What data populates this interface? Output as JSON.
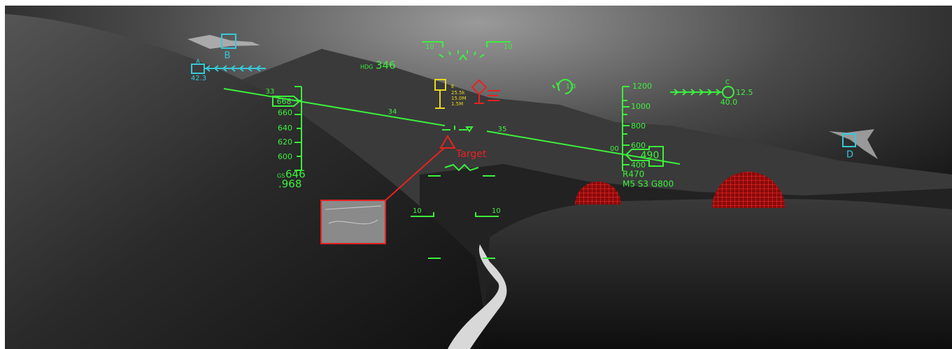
{
  "tracks": {
    "b": {
      "label": "B"
    },
    "a": {
      "label": "A",
      "value": "42.3"
    },
    "c": {
      "label": "C",
      "range": "12.5",
      "value": "40.0"
    },
    "d": {
      "label": "D"
    }
  },
  "heading": {
    "label": "HDG",
    "value": "346"
  },
  "heading_scale": [
    "10",
    "10"
  ],
  "horizon_marks": [
    "33",
    "34",
    "35"
  ],
  "speed_tape": {
    "ticks": [
      "660",
      "640",
      "620",
      "600"
    ],
    "current": "668",
    "ground_speed_label": "GS",
    "ground_speed": "646",
    "mach": ".968"
  },
  "target_info": [
    "E",
    "25.5k",
    "15.0M",
    "1.5M"
  ],
  "g_indicator": "1.3",
  "altitude_tape": {
    "ticks": [
      "1200",
      "1000",
      "800",
      "600",
      "400"
    ],
    "side": "00",
    "current": "490",
    "radar_alt": "R470",
    "status": "M5 S3 G800"
  },
  "target_label": "Target",
  "pitch_ladder": [
    "10",
    "10"
  ]
}
